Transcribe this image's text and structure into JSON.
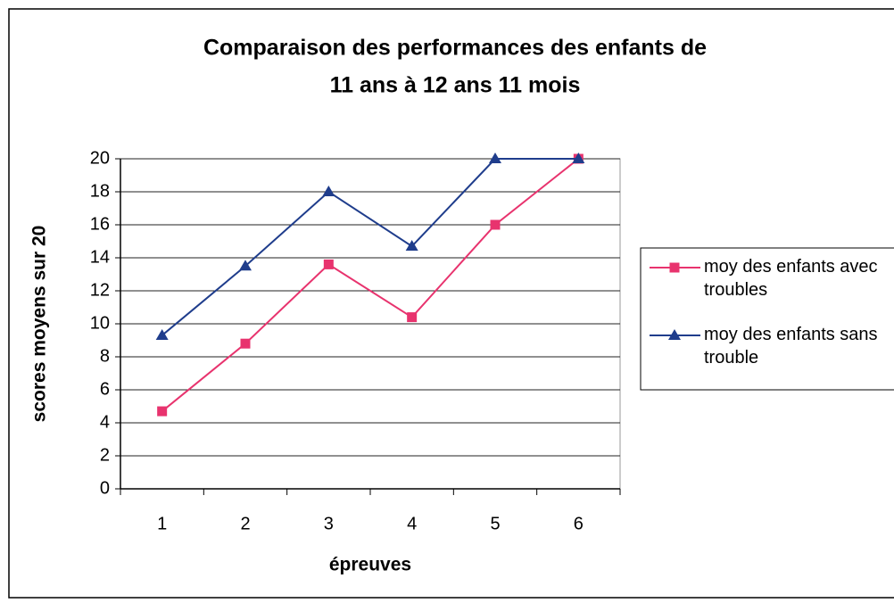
{
  "chart_data": {
    "type": "line",
    "title": [
      "Comparaison des performances des enfants de",
      "11 ans à 12 ans 11 mois"
    ],
    "x_label": "épreuves",
    "y_label": "scores moyens sur 20",
    "categories": [
      "1",
      "2",
      "3",
      "4",
      "5",
      "6"
    ],
    "series": [
      {
        "name": "moy des enfants avec troubles",
        "color": "#e8336e",
        "marker": "square",
        "values": [
          4.7,
          8.8,
          13.6,
          10.4,
          16,
          20
        ]
      },
      {
        "name": "moy des enfants sans trouble",
        "color": "#1f3d8c",
        "marker": "triangle",
        "values": [
          9.3,
          13.5,
          18,
          14.7,
          20,
          20
        ]
      }
    ],
    "ylim": [
      0,
      20
    ],
    "yticks": [
      0,
      2,
      4,
      6,
      8,
      10,
      12,
      14,
      16,
      18,
      20
    ],
    "grid": true,
    "legend": "right"
  }
}
